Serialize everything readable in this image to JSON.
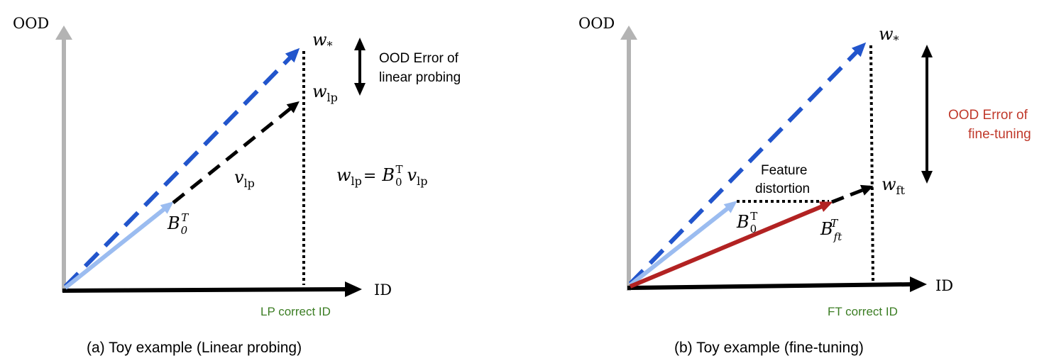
{
  "colors": {
    "axis_gray": "#b3b3b3",
    "blue_dash": "#2255cc",
    "light_blue": "#9bbcf0",
    "red": "#b22222",
    "black": "#000000",
    "green": "#3b7d23",
    "red_text": "#c0392b"
  },
  "panel_a": {
    "y_axis_label": "OOD",
    "x_axis_label": "ID",
    "w_star": "w",
    "w_star_sub": "*",
    "w_lp": "w",
    "w_lp_sub": "lp",
    "v_lp": "v",
    "v_lp_sub": "lp",
    "b0": "B",
    "b0_sub": "0",
    "b0_sup": "T",
    "equation_lhs": "w",
    "equation_lhs_sub": "lp",
    "equation_eq": "=",
    "equation_b": "B",
    "equation_b_sub": "0",
    "equation_b_sup": "T",
    "equation_v": "v",
    "equation_v_sub": "lp",
    "error_line1": "OOD Error of",
    "error_line2": "linear probing",
    "correct_id": "LP correct ID",
    "caption": "(a) Toy example (Linear probing)"
  },
  "panel_b": {
    "y_axis_label": "OOD",
    "x_axis_label": "ID",
    "w_star": "w",
    "w_star_sub": "*",
    "w_ft": "w",
    "w_ft_sub": "ft",
    "b0": "B",
    "b0_sub": "0",
    "b0_sup": "T",
    "bft": "B",
    "bft_sub": "ft",
    "bft_sup": "T",
    "feature_line1": "Feature",
    "feature_line2": "distortion",
    "error_line1": "OOD Error of",
    "error_line2": "fine-tuning",
    "correct_id": "FT correct ID",
    "caption": "(b) Toy example (fine-tuning)"
  }
}
